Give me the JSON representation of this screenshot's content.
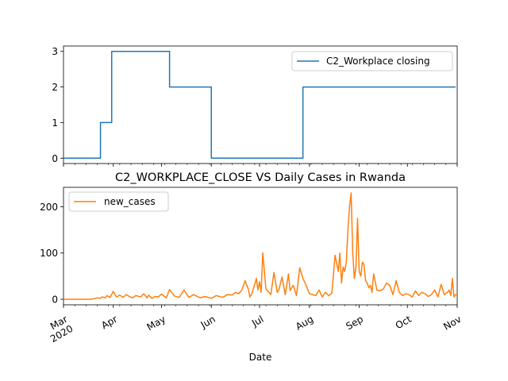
{
  "chart_data": [
    {
      "type": "line",
      "title": "",
      "xlabel": "",
      "ylabel": "",
      "x_range": [
        "2020-03-01",
        "2020-11-01"
      ],
      "ylim": [
        -0.15,
        3.15
      ],
      "yticks": [
        0,
        1,
        2,
        3
      ],
      "xtick_labels_visible": false,
      "legend": {
        "position": "upper right"
      },
      "series": [
        {
          "name": "C2_Workplace closing",
          "color": "#1f77b4",
          "x": [
            "2020-03-01",
            "2020-03-24",
            "2020-03-24",
            "2020-03-31",
            "2020-03-31",
            "2020-05-06",
            "2020-05-06",
            "2020-06-01",
            "2020-06-01",
            "2020-07-28",
            "2020-07-28",
            "2020-10-31"
          ],
          "values": [
            0,
            0,
            1,
            1,
            3,
            3,
            2,
            2,
            0,
            0,
            2,
            2
          ]
        }
      ]
    },
    {
      "type": "line",
      "title": "C2_WORKPLACE_CLOSE VS Daily Cases in Rwanda",
      "xlabel": "Date",
      "ylabel": "",
      "x_range": [
        "2020-03-01",
        "2020-11-01"
      ],
      "ylim": [
        -12,
        242
      ],
      "yticks": [
        0,
        100,
        200
      ],
      "xtick_labels": [
        "Mar\n2020",
        "Apr",
        "May",
        "Jun",
        "Jul",
        "Aug",
        "Sep",
        "Oct",
        "Nov"
      ],
      "xtick_dates": [
        "2020-03-01",
        "2020-04-01",
        "2020-05-01",
        "2020-06-01",
        "2020-07-01",
        "2020-08-01",
        "2020-09-01",
        "2020-10-01",
        "2020-11-01"
      ],
      "legend": {
        "position": "upper left"
      },
      "series": [
        {
          "name": "new_cases",
          "color": "#ff7f0e",
          "x": [
            "2020-03-01",
            "2020-03-14",
            "2020-03-18",
            "2020-03-20",
            "2020-03-22",
            "2020-03-24",
            "2020-03-25",
            "2020-03-27",
            "2020-03-28",
            "2020-03-30",
            "2020-04-01",
            "2020-04-03",
            "2020-04-05",
            "2020-04-07",
            "2020-04-09",
            "2020-04-11",
            "2020-04-13",
            "2020-04-15",
            "2020-04-18",
            "2020-04-20",
            "2020-04-22",
            "2020-04-23",
            "2020-04-25",
            "2020-04-27",
            "2020-04-29",
            "2020-05-01",
            "2020-05-04",
            "2020-05-06",
            "2020-05-09",
            "2020-05-12",
            "2020-05-15",
            "2020-05-18",
            "2020-05-21",
            "2020-05-25",
            "2020-05-28",
            "2020-06-01",
            "2020-06-04",
            "2020-06-08",
            "2020-06-11",
            "2020-06-14",
            "2020-06-16",
            "2020-06-18",
            "2020-06-20",
            "2020-06-22",
            "2020-06-24",
            "2020-06-25",
            "2020-06-26",
            "2020-06-28",
            "2020-06-29",
            "2020-06-30",
            "2020-07-01",
            "2020-07-02",
            "2020-07-03",
            "2020-07-05",
            "2020-07-06",
            "2020-07-08",
            "2020-07-10",
            "2020-07-12",
            "2020-07-13",
            "2020-07-15",
            "2020-07-17",
            "2020-07-19",
            "2020-07-20",
            "2020-07-22",
            "2020-07-24",
            "2020-07-26",
            "2020-07-28",
            "2020-07-30",
            "2020-08-01",
            "2020-08-03",
            "2020-08-05",
            "2020-08-07",
            "2020-08-09",
            "2020-08-11",
            "2020-08-13",
            "2020-08-15",
            "2020-08-17",
            "2020-08-19",
            "2020-08-20",
            "2020-08-21",
            "2020-08-22",
            "2020-08-23",
            "2020-08-24",
            "2020-08-25",
            "2020-08-26",
            "2020-08-27",
            "2020-08-28",
            "2020-08-29",
            "2020-08-30",
            "2020-08-31",
            "2020-09-01",
            "2020-09-02",
            "2020-09-03",
            "2020-09-04",
            "2020-09-05",
            "2020-09-06",
            "2020-09-07",
            "2020-09-08",
            "2020-09-09",
            "2020-09-10",
            "2020-09-12",
            "2020-09-14",
            "2020-09-16",
            "2020-09-18",
            "2020-09-20",
            "2020-09-22",
            "2020-09-24",
            "2020-09-26",
            "2020-09-28",
            "2020-09-30",
            "2020-10-02",
            "2020-10-04",
            "2020-10-06",
            "2020-10-08",
            "2020-10-10",
            "2020-10-12",
            "2020-10-14",
            "2020-10-16",
            "2020-10-18",
            "2020-10-20",
            "2020-10-22",
            "2020-10-24",
            "2020-10-26",
            "2020-10-27",
            "2020-10-28",
            "2020-10-29",
            "2020-10-30",
            "2020-10-31",
            "2020-11-01"
          ],
          "values": [
            0,
            0,
            0,
            1,
            3,
            2,
            5,
            3,
            8,
            4,
            17,
            5,
            9,
            4,
            10,
            6,
            3,
            8,
            5,
            12,
            3,
            9,
            2,
            6,
            5,
            11,
            3,
            21,
            7,
            4,
            20,
            4,
            10,
            3,
            6,
            2,
            8,
            4,
            10,
            9,
            15,
            12,
            20,
            40,
            22,
            5,
            10,
            32,
            45,
            20,
            38,
            15,
            100,
            22,
            18,
            10,
            58,
            15,
            20,
            48,
            10,
            55,
            19,
            30,
            8,
            68,
            45,
            30,
            12,
            10,
            8,
            20,
            5,
            15,
            8,
            13,
            95,
            60,
            100,
            35,
            70,
            60,
            80,
            150,
            200,
            230,
            100,
            45,
            70,
            175,
            60,
            50,
            80,
            75,
            40,
            35,
            25,
            30,
            15,
            55,
            20,
            18,
            22,
            35,
            30,
            10,
            40,
            15,
            8,
            12,
            10,
            5,
            18,
            8,
            15,
            12,
            6,
            10,
            20,
            5,
            32,
            10,
            15,
            20,
            8,
            45,
            5,
            10,
            12
          ],
          "_note_ignore": ""
        }
      ]
    }
  ]
}
